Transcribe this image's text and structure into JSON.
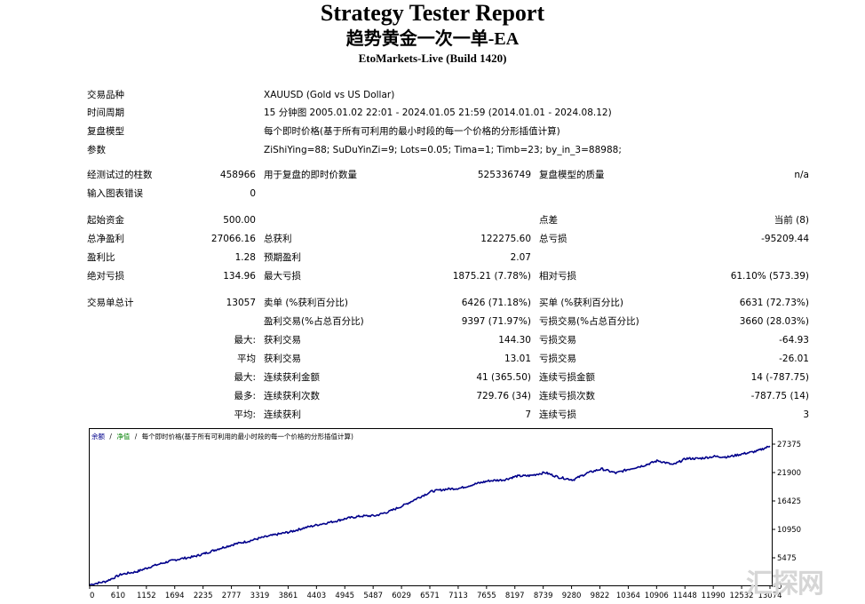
{
  "header": {
    "title": "Strategy Tester Report",
    "ea_name": "趋势黄金一次一单-EA",
    "server": "EtoMarkets-Live (Build 1420)"
  },
  "info": {
    "symbol_label": "交易品种",
    "symbol_value": "XAUUSD (Gold vs US Dollar)",
    "period_label": "时间周期",
    "period_value": "15 分钟图 2005.01.02 22:01 - 2024.01.05 21:59 (2014.01.01 - 2024.08.12)",
    "model_label": "复盘模型",
    "model_value": "每个即时价格(基于所有可利用的最小时段的每一个价格的分形插值计算)",
    "params_label": "参数",
    "params_value": "ZiShiYing=88; SuDuYinZi=9; Lots=0.05; Tima=1; Timb=23; by_in_3=88988;"
  },
  "bars": {
    "bars_label": "经测试过的柱数",
    "bars_value": "458966",
    "ticks_label": "用于复盘的即时价数量",
    "ticks_value": "525336749",
    "quality_label": "复盘模型的质量",
    "quality_value": "n/a",
    "errors_label": "输入图表错误",
    "errors_value": "0"
  },
  "stats": {
    "deposit_label": "起始资金",
    "deposit_value": "500.00",
    "spread_label": "点差",
    "spread_value": "当前 (8)",
    "net_label": "总净盈利",
    "net_value": "27066.16",
    "gross_profit_label": "总获利",
    "gross_profit_value": "122275.60",
    "gross_loss_label": "总亏损",
    "gross_loss_value": "-95209.44",
    "pf_label": "盈利比",
    "pf_value": "1.28",
    "expected_label": "预期盈利",
    "expected_value": "2.07",
    "abs_dd_label": "绝对亏损",
    "abs_dd_value": "134.96",
    "max_dd_label": "最大亏损",
    "max_dd_value": "1875.21 (7.78%)",
    "rel_dd_label": "相对亏损",
    "rel_dd_value": "61.10% (573.39)"
  },
  "trades": {
    "total_label": "交易单总计",
    "total_value": "13057",
    "short_label": "卖单 (%获利百分比)",
    "short_value": "6426 (71.18%)",
    "long_label": "买单 (%获利百分比)",
    "long_value": "6631 (72.73%)",
    "win_label": "盈利交易(%占总百分比)",
    "win_value": "9397 (71.97%)",
    "loss_label": "亏损交易(%占总百分比)",
    "loss_value": "3660 (28.03%)",
    "largest_prefix": "最大:",
    "largest_win_label": "获利交易",
    "largest_win_value": "144.30",
    "largest_loss_label": "亏损交易",
    "largest_loss_value": "-64.93",
    "avg_prefix": "平均",
    "avg_win_label": "获利交易",
    "avg_win_value": "13.01",
    "avg_loss_label": "亏损交易",
    "avg_loss_value": "-26.01",
    "max_prefix": "最大:",
    "consec_wins_label": "连续获利金额",
    "consec_wins_value": "41 (365.50)",
    "consec_losses_label": "连续亏损金额",
    "consec_losses_value": "14 (-787.75)",
    "most_prefix": "最多:",
    "consec_profit_label": "连续获利次数",
    "consec_profit_value": "729.76 (34)",
    "consec_loss_label": "连续亏损次数",
    "consec_loss_value": "-787.75 (14)",
    "avg2_prefix": "平均:",
    "avg_consec_wins_label": "连续获利",
    "avg_consec_wins_value": "7",
    "avg_consec_losses_label": "连续亏损",
    "avg_consec_losses_value": "3"
  },
  "chart_data": {
    "type": "line",
    "legend_balance": "余额",
    "legend_sep1": "/",
    "legend_equity": "净值",
    "legend_sep2": "/",
    "legend_model": "每个即时价格(基于所有可利用的最小时段的每一个价格的分形插值计算)",
    "x_ticks": [
      "0",
      "610",
      "1152",
      "1694",
      "2235",
      "2777",
      "3319",
      "3861",
      "4403",
      "4945",
      "5487",
      "6029",
      "6571",
      "7113",
      "7655",
      "8197",
      "8739",
      "9280",
      "9822",
      "10364",
      "10906",
      "11448",
      "11990",
      "12532",
      "13074"
    ],
    "y_ticks": [
      "27375",
      "21900",
      "16425",
      "10950",
      "5475",
      "0"
    ],
    "ylim": [
      0,
      27375
    ],
    "xlim": [
      0,
      13057
    ],
    "colors": {
      "line": "#00008b",
      "legend_balance": "#00008b",
      "legend_equity": "#008000"
    },
    "series": [
      {
        "x": [
          0,
          300,
          610,
          900,
          1152,
          1450,
          1694,
          2000,
          2235,
          2500,
          2777,
          3050,
          3319,
          3600,
          3861,
          4100,
          4403,
          4700,
          4945,
          5200,
          5487,
          5750,
          6029,
          6300,
          6571,
          6850,
          7113,
          7400,
          7655,
          7950,
          8197,
          8450,
          8739,
          9000,
          9280,
          9550,
          9822,
          10100,
          10364,
          10650,
          10906,
          11200,
          11448,
          11700,
          11990,
          12250,
          12532,
          12800,
          13057
        ],
        "values": [
          300,
          900,
          2300,
          2800,
          3700,
          4600,
          5200,
          5700,
          6400,
          7300,
          8100,
          8700,
          9400,
          10000,
          10500,
          11200,
          11900,
          12500,
          13100,
          13500,
          13600,
          14400,
          15600,
          17000,
          18300,
          18700,
          18900,
          19700,
          20300,
          20500,
          21200,
          21300,
          21900,
          21000,
          20500,
          21800,
          22600,
          21800,
          22600,
          23300,
          24200,
          23400,
          24600,
          24600,
          25000,
          24900,
          25500,
          26000,
          27000
        ]
      }
    ]
  }
}
